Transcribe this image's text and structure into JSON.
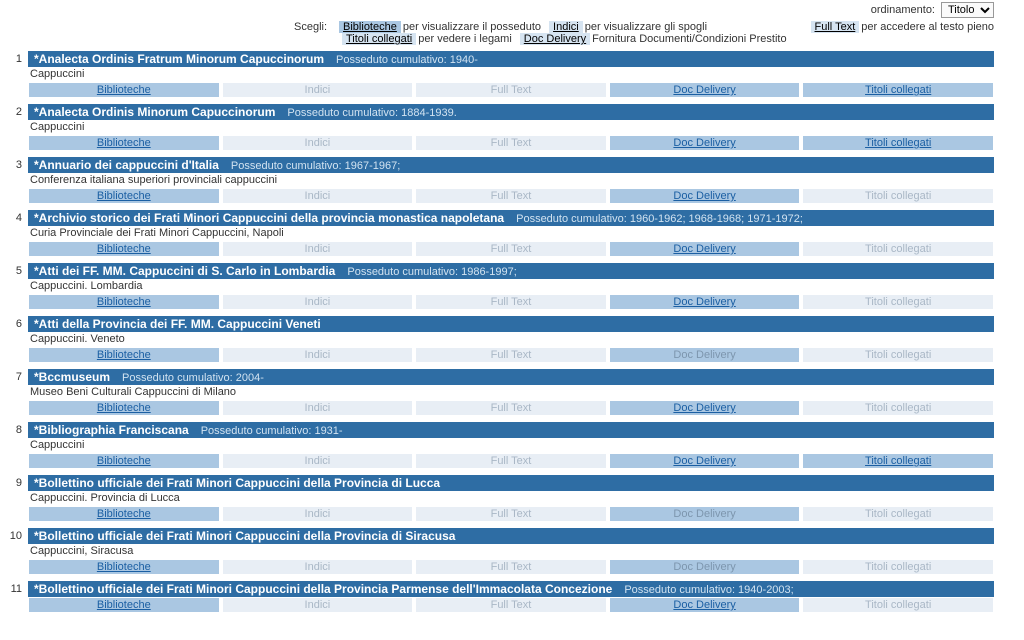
{
  "sort": {
    "label": "ordinamento:",
    "value": "Titolo"
  },
  "legend": {
    "scegli": "Scegli:",
    "items": [
      {
        "chip": "Biblioteche",
        "text": "per visualizzare il posseduto"
      },
      {
        "chip": "Indici",
        "text": "per visualizzare gli spogli"
      },
      {
        "chip": "Full Text",
        "text": "per accedere al testo pieno"
      },
      {
        "chip": "Titoli collegati",
        "text": "per vedere i legami"
      },
      {
        "chip": "Doc Delivery",
        "text": "Fornitura Documenti/Condizioni Prestito"
      }
    ]
  },
  "buttons": {
    "biblioteche": "Biblioteche",
    "indici": "Indici",
    "fulltext": "Full Text",
    "docdelivery": "Doc Delivery",
    "titoli": "Titoli collegati"
  },
  "records": [
    {
      "n": "1",
      "title": "*Analecta Ordinis Fratrum Minorum Capuccinorum",
      "poss": "Posseduto cumulativo: 1940-",
      "sub": "Cappuccini",
      "state": {
        "biblioteche": "active",
        "indici": "inactive",
        "fulltext": "inactive",
        "docdelivery": "active",
        "titoli": "active"
      }
    },
    {
      "n": "2",
      "title": "*Analecta Ordinis Minorum Capuccinorum",
      "poss": "Posseduto cumulativo: 1884-1939.",
      "sub": "Cappuccini",
      "state": {
        "biblioteche": "active",
        "indici": "inactive",
        "fulltext": "inactive",
        "docdelivery": "active",
        "titoli": "active"
      }
    },
    {
      "n": "3",
      "title": "*Annuario dei cappuccini d'Italia",
      "poss": "Posseduto cumulativo: 1967-1967;",
      "sub": "Conferenza italiana superiori provinciali cappuccini",
      "state": {
        "biblioteche": "active",
        "indici": "inactive",
        "fulltext": "inactive",
        "docdelivery": "active",
        "titoli": "inactive"
      }
    },
    {
      "n": "4",
      "title": "*Archivio storico dei Frati Minori Cappuccini della provincia monastica napoletana",
      "poss": "Posseduto cumulativo: 1960-1962; 1968-1968; 1971-1972;",
      "sub": "Curia Provinciale dei Frati Minori Cappuccini, Napoli",
      "state": {
        "biblioteche": "active",
        "indici": "inactive",
        "fulltext": "inactive",
        "docdelivery": "active",
        "titoli": "inactive"
      }
    },
    {
      "n": "5",
      "title": "*Atti dei FF. MM. Cappuccini di S. Carlo in Lombardia",
      "poss": "Posseduto cumulativo: 1986-1997;",
      "sub": "Cappuccini. Lombardia",
      "state": {
        "biblioteche": "active",
        "indici": "inactive",
        "fulltext": "inactive",
        "docdelivery": "active",
        "titoli": "inactive"
      }
    },
    {
      "n": "6",
      "title": "*Atti della Provincia dei FF. MM. Cappuccini Veneti",
      "poss": "",
      "sub": "Cappuccini. Veneto",
      "state": {
        "biblioteche": "active",
        "indici": "inactive",
        "fulltext": "inactive",
        "docdelivery": "inactive-dark",
        "titoli": "inactive"
      }
    },
    {
      "n": "7",
      "title": "*Bccmuseum",
      "poss": "Posseduto cumulativo: 2004-",
      "sub": "Museo Beni Culturali Cappuccini di Milano",
      "state": {
        "biblioteche": "active",
        "indici": "inactive",
        "fulltext": "inactive",
        "docdelivery": "active",
        "titoli": "inactive"
      }
    },
    {
      "n": "8",
      "title": "*Bibliographia Franciscana",
      "poss": "Posseduto cumulativo: 1931-",
      "sub": "Cappuccini",
      "state": {
        "biblioteche": "active",
        "indici": "inactive",
        "fulltext": "inactive",
        "docdelivery": "active",
        "titoli": "active"
      }
    },
    {
      "n": "9",
      "title": "*Bollettino ufficiale dei Frati Minori Cappuccini della Provincia di Lucca",
      "poss": "",
      "sub": "Cappuccini. Provincia di Lucca",
      "state": {
        "biblioteche": "active",
        "indici": "inactive",
        "fulltext": "inactive",
        "docdelivery": "inactive-dark",
        "titoli": "inactive"
      }
    },
    {
      "n": "10",
      "title": "*Bollettino ufficiale dei Frati Minori Cappuccini della Provincia di Siracusa",
      "poss": "",
      "sub": "Cappuccini, Siracusa",
      "state": {
        "biblioteche": "active",
        "indici": "inactive",
        "fulltext": "inactive",
        "docdelivery": "inactive-dark",
        "titoli": "inactive"
      }
    },
    {
      "n": "11",
      "title": "*Bollettino ufficiale dei Frati Minori Cappuccini della Provincia Parmense dell'Immacolata Concezione",
      "poss": "Posseduto cumulativo: 1940-2003;",
      "sub": "",
      "state": {
        "biblioteche": "active",
        "indici": "inactive",
        "fulltext": "inactive",
        "docdelivery": "active",
        "titoli": "inactive"
      }
    }
  ]
}
